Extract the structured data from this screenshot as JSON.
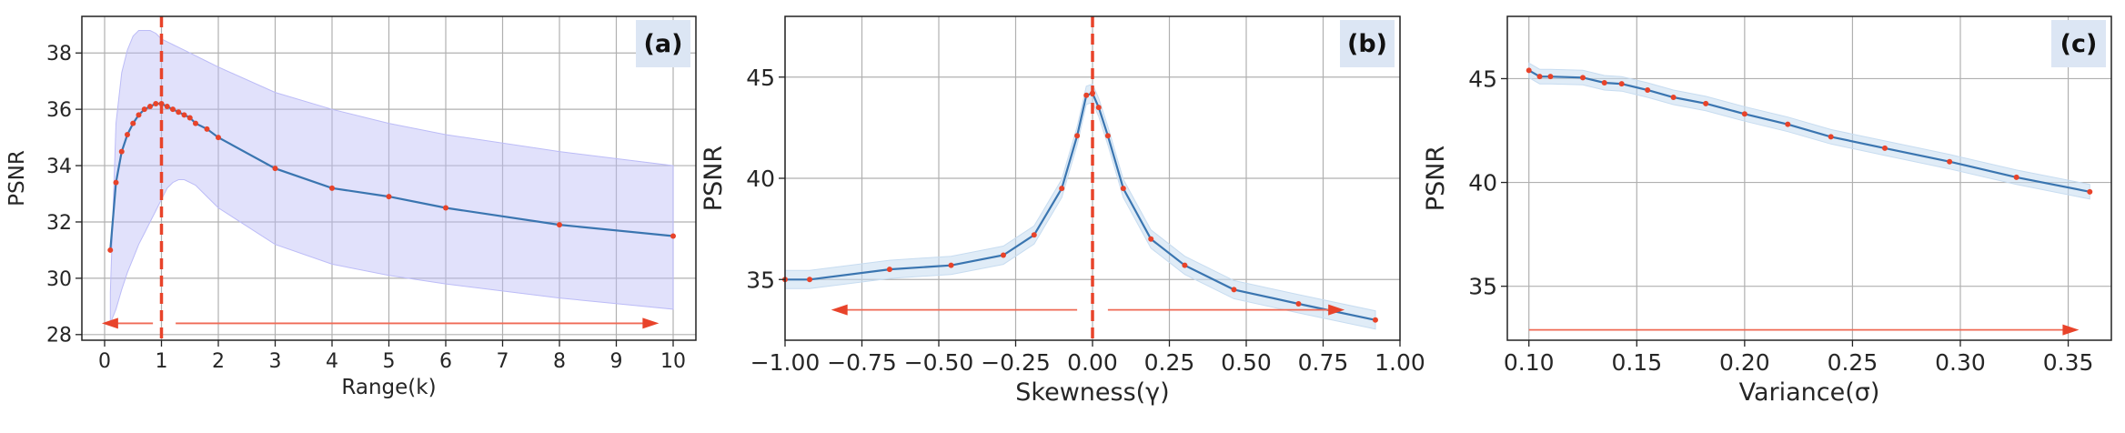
{
  "chart_data": [
    {
      "type": "line",
      "panel_label": "(a)",
      "xlabel": "Range(k)",
      "ylabel": "PSNR",
      "xlim": [
        -0.4,
        10.4
      ],
      "ylim": [
        27.8,
        39.3
      ],
      "xticks": [
        0,
        1,
        2,
        3,
        4,
        5,
        6,
        7,
        8,
        9,
        10
      ],
      "yticks": [
        28,
        30,
        32,
        34,
        36,
        38
      ],
      "grid": true,
      "vline": 1,
      "series": [
        {
          "x": [
            0.1,
            0.2,
            0.3,
            0.4,
            0.5,
            0.6,
            0.7,
            0.8,
            0.9,
            1.0,
            1.1,
            1.2,
            1.3,
            1.4,
            1.5,
            1.6,
            1.8,
            2,
            3,
            4,
            5,
            6,
            8,
            10
          ],
          "y": [
            31.0,
            33.4,
            34.5,
            35.1,
            35.5,
            35.8,
            36.0,
            36.1,
            36.2,
            36.2,
            36.1,
            36.0,
            35.9,
            35.8,
            35.7,
            35.5,
            35.3,
            35.0,
            33.9,
            33.2,
            32.9,
            32.5,
            31.9,
            31.5
          ],
          "y_upper": [
            29.5,
            35.5,
            37.3,
            38.1,
            38.6,
            38.8,
            38.8,
            38.8,
            38.7,
            38.5,
            38.4,
            38.3,
            38.2,
            38.1,
            38.0,
            37.9,
            37.7,
            37.5,
            36.6,
            36.0,
            35.5,
            35.1,
            34.5,
            34.0
          ],
          "y_lower": [
            28.4,
            28.9,
            29.6,
            30.2,
            30.7,
            31.2,
            31.6,
            32.0,
            32.4,
            32.8,
            33.2,
            33.4,
            33.5,
            33.5,
            33.4,
            33.3,
            32.9,
            32.5,
            31.2,
            30.5,
            30.1,
            29.8,
            29.3,
            28.9
          ]
        }
      ],
      "arrows": [
        {
          "from": 0.85,
          "to": -0.05,
          "y": 28.4
        },
        {
          "from": 1.25,
          "to": 9.75,
          "y": 28.4
        }
      ]
    },
    {
      "type": "line",
      "panel_label": "(b)",
      "xlabel": "Skewness(γ)",
      "ylabel": "PSNR",
      "xlim": [
        -1.0,
        1.0
      ],
      "ylim": [
        32.0,
        48.0
      ],
      "xticks": [
        -1.0,
        -0.75,
        -0.5,
        -0.25,
        0.0,
        0.25,
        0.5,
        0.75,
        1.0
      ],
      "xtick_labels": [
        "−1.00",
        "−0.75",
        "−0.50",
        "−0.25",
        "0.00",
        "0.25",
        "0.50",
        "0.75",
        "1.00"
      ],
      "yticks": [
        35,
        40,
        45
      ],
      "grid": true,
      "vline": 0,
      "series": [
        {
          "x": [
            -1.0,
            -0.92,
            -0.66,
            -0.46,
            -0.29,
            -0.19,
            -0.1,
            -0.05,
            -0.02,
            0.0,
            0.02,
            0.05,
            0.1,
            0.19,
            0.3,
            0.46,
            0.67,
            0.92
          ],
          "y": [
            35.0,
            35.0,
            35.5,
            35.7,
            36.2,
            37.2,
            39.5,
            42.1,
            44.1,
            44.2,
            43.5,
            42.1,
            39.5,
            37.0,
            35.7,
            34.5,
            33.8,
            33.0
          ],
          "band": 0.45
        }
      ],
      "arrows": [
        {
          "from": -0.05,
          "to": -0.85,
          "y": 33.5
        },
        {
          "from": 0.05,
          "to": 0.82,
          "y": 33.5
        }
      ]
    },
    {
      "type": "line",
      "panel_label": "(c)",
      "xlabel": "Variance(σ)",
      "ylabel": "PSNR",
      "xlim": [
        0.09,
        0.37
      ],
      "ylim": [
        32.4,
        48.0
      ],
      "xticks": [
        0.1,
        0.15,
        0.2,
        0.25,
        0.3,
        0.35
      ],
      "xtick_labels": [
        "0.10",
        "0.15",
        "0.20",
        "0.25",
        "0.30",
        "0.35"
      ],
      "yticks": [
        35,
        40,
        45
      ],
      "grid": true,
      "series": [
        {
          "x": [
            0.1,
            0.105,
            0.11,
            0.125,
            0.135,
            0.143,
            0.155,
            0.167,
            0.182,
            0.2,
            0.22,
            0.24,
            0.265,
            0.295,
            0.326,
            0.36
          ],
          "y": [
            45.4,
            45.1,
            45.1,
            45.05,
            44.8,
            44.75,
            44.45,
            44.1,
            43.8,
            43.3,
            42.8,
            42.2,
            41.65,
            41.0,
            40.25,
            39.55
          ],
          "band": 0.35
        }
      ],
      "arrows": [
        {
          "from": 0.1,
          "to": 0.355,
          "y": 32.9
        }
      ]
    }
  ]
}
